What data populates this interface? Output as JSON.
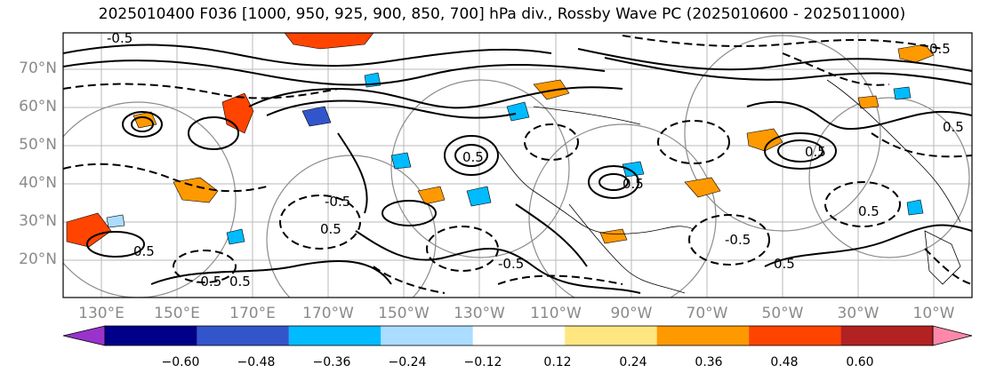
{
  "title": "2025010400 F036 [1000, 950, 925, 900, 850, 700] hPa div., Rossby Wave PC (2025010600 - 2025011000)",
  "map": {
    "lat_labels": [
      "70°N",
      "60°N",
      "50°N",
      "40°N",
      "30°N",
      "20°N"
    ],
    "lon_labels": [
      "130°E",
      "150°E",
      "170°E",
      "170°W",
      "150°W",
      "130°W",
      "110°W",
      "90°W",
      "70°W",
      "50°W",
      "30°W",
      "10°W"
    ],
    "contour_labels": [
      "-0.5",
      "0.5",
      "-0.5",
      "0.5",
      "0.5",
      "-0.5",
      "0.5",
      "0.5",
      "-0.5",
      "0.5",
      "0.5",
      "0.5",
      "-0.5",
      "0.5",
      "0.5"
    ]
  },
  "colorbar": {
    "colors": [
      "#9933cc",
      "#000088",
      "#3355cc",
      "#00bbff",
      "#aaddff",
      "#ffffff",
      "#ffe680",
      "#ff9900",
      "#ff4400",
      "#b22222",
      "#ff88aa"
    ],
    "tick_labels": [
      "−0.60",
      "−0.48",
      "−0.36",
      "−0.24",
      "−0.12",
      "0.12",
      "0.24",
      "0.36",
      "0.48",
      "0.60"
    ]
  }
}
